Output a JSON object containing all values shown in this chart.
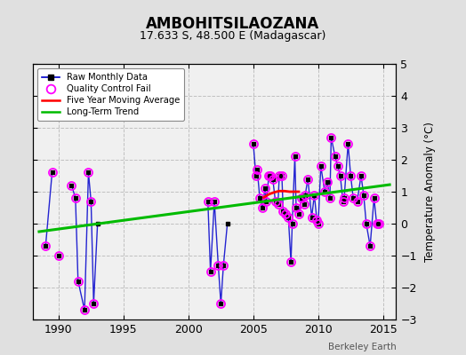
{
  "title": "AMBOHITSILAOZANA",
  "subtitle": "17.633 S, 48.500 E (Madagascar)",
  "ylabel": "Temperature Anomaly (°C)",
  "credit": "Berkeley Earth",
  "xlim": [
    1988,
    2016
  ],
  "ylim": [
    -3,
    5
  ],
  "yticks": [
    -3,
    -2,
    -1,
    0,
    1,
    2,
    3,
    4,
    5
  ],
  "xticks": [
    1990,
    1995,
    2000,
    2005,
    2010,
    2015
  ],
  "bg_color": "#e0e0e0",
  "plot_bg_color": "#f0f0f0",
  "raw_color": "#0000cc",
  "qc_color": "#ff00ff",
  "trend_color": "#00bb00",
  "mavg_color": "#ff0000",
  "grid_color": "#c0c0c0",
  "raw_segments": [
    [
      [
        1989.0,
        -0.7
      ],
      [
        1989.5,
        1.6
      ]
    ],
    [
      [
        1991.0,
        1.2
      ],
      [
        1991.3,
        0.8
      ],
      [
        1991.5,
        -1.8
      ],
      [
        1992.0,
        -2.7
      ],
      [
        1992.3,
        1.6
      ],
      [
        1992.5,
        0.7
      ],
      [
        1992.7,
        -2.5
      ],
      [
        1993.0,
        0.0
      ]
    ],
    [
      [
        2001.5,
        0.7
      ],
      [
        2001.7,
        -1.5
      ],
      [
        2002.0,
        0.7
      ],
      [
        2002.3,
        -1.3
      ],
      [
        2002.5,
        -2.5
      ],
      [
        2002.7,
        -1.3
      ],
      [
        2003.0,
        0.0
      ]
    ],
    [
      [
        2005.0,
        2.5
      ],
      [
        2005.2,
        1.5
      ],
      [
        2005.3,
        1.7
      ],
      [
        2005.5,
        0.8
      ],
      [
        2005.7,
        0.5
      ],
      [
        2005.9,
        1.1
      ],
      [
        2006.0,
        0.7
      ],
      [
        2006.2,
        1.5
      ],
      [
        2006.3,
        1.5
      ],
      [
        2006.5,
        1.4
      ],
      [
        2006.7,
        0.7
      ],
      [
        2006.9,
        0.6
      ],
      [
        2007.0,
        1.5
      ],
      [
        2007.2,
        1.5
      ],
      [
        2007.3,
        0.4
      ],
      [
        2007.5,
        0.3
      ],
      [
        2007.7,
        0.2
      ],
      [
        2007.9,
        -1.2
      ],
      [
        2008.0,
        0.0
      ],
      [
        2008.2,
        2.1
      ],
      [
        2008.3,
        0.5
      ],
      [
        2008.5,
        0.3
      ],
      [
        2008.7,
        0.8
      ],
      [
        2008.9,
        0.6
      ],
      [
        2009.0,
        0.9
      ],
      [
        2009.2,
        1.4
      ],
      [
        2009.5,
        0.2
      ],
      [
        2009.7,
        0.9
      ],
      [
        2009.9,
        0.1
      ],
      [
        2010.0,
        0.0
      ],
      [
        2010.2,
        1.8
      ],
      [
        2010.5,
        1.0
      ],
      [
        2010.7,
        1.3
      ],
      [
        2010.9,
        0.8
      ],
      [
        2011.0,
        2.7
      ],
      [
        2011.3,
        2.1
      ],
      [
        2011.5,
        1.8
      ],
      [
        2011.7,
        1.5
      ],
      [
        2011.9,
        0.7
      ],
      [
        2012.0,
        0.8
      ],
      [
        2012.3,
        2.5
      ],
      [
        2012.5,
        1.5
      ],
      [
        2012.7,
        0.8
      ],
      [
        2013.0,
        0.7
      ],
      [
        2013.3,
        1.5
      ],
      [
        2013.5,
        0.9
      ],
      [
        2013.7,
        0.0
      ],
      [
        2014.0,
        -0.7
      ],
      [
        2014.3,
        0.8
      ],
      [
        2014.5,
        0.0
      ],
      [
        2014.7,
        0.0
      ]
    ]
  ],
  "all_raw_points": [
    [
      1989.0,
      -0.7
    ],
    [
      1989.5,
      1.6
    ],
    [
      1990.0,
      -1.0
    ],
    [
      1991.0,
      1.2
    ],
    [
      1991.3,
      0.8
    ],
    [
      1991.5,
      -1.8
    ],
    [
      1992.0,
      -2.7
    ],
    [
      1992.3,
      1.6
    ],
    [
      1992.5,
      0.7
    ],
    [
      1992.7,
      -2.5
    ],
    [
      1993.0,
      0.0
    ],
    [
      2001.5,
      0.7
    ],
    [
      2001.7,
      -1.5
    ],
    [
      2002.0,
      0.7
    ],
    [
      2002.3,
      -1.3
    ],
    [
      2002.5,
      -2.5
    ],
    [
      2002.7,
      -1.3
    ],
    [
      2003.0,
      0.0
    ],
    [
      2005.0,
      2.5
    ],
    [
      2005.2,
      1.5
    ],
    [
      2005.3,
      1.7
    ],
    [
      2005.5,
      0.8
    ],
    [
      2005.7,
      0.5
    ],
    [
      2005.9,
      1.1
    ],
    [
      2006.0,
      0.7
    ],
    [
      2006.2,
      1.5
    ],
    [
      2006.3,
      1.5
    ],
    [
      2006.5,
      1.4
    ],
    [
      2006.7,
      0.7
    ],
    [
      2006.9,
      0.6
    ],
    [
      2007.0,
      1.5
    ],
    [
      2007.2,
      1.5
    ],
    [
      2007.3,
      0.4
    ],
    [
      2007.5,
      0.3
    ],
    [
      2007.7,
      0.2
    ],
    [
      2007.9,
      -1.2
    ],
    [
      2008.0,
      0.0
    ],
    [
      2008.2,
      2.1
    ],
    [
      2008.3,
      0.5
    ],
    [
      2008.5,
      0.3
    ],
    [
      2008.7,
      0.8
    ],
    [
      2008.9,
      0.6
    ],
    [
      2009.0,
      0.9
    ],
    [
      2009.2,
      1.4
    ],
    [
      2009.5,
      0.2
    ],
    [
      2009.7,
      0.9
    ],
    [
      2009.9,
      0.1
    ],
    [
      2010.0,
      0.0
    ],
    [
      2010.2,
      1.8
    ],
    [
      2010.5,
      1.0
    ],
    [
      2010.7,
      1.3
    ],
    [
      2010.9,
      0.8
    ],
    [
      2011.0,
      2.7
    ],
    [
      2011.3,
      2.1
    ],
    [
      2011.5,
      1.8
    ],
    [
      2011.7,
      1.5
    ],
    [
      2011.9,
      0.7
    ],
    [
      2012.0,
      0.8
    ],
    [
      2012.3,
      2.5
    ],
    [
      2012.5,
      1.5
    ],
    [
      2012.7,
      0.8
    ],
    [
      2013.0,
      0.7
    ],
    [
      2013.3,
      1.5
    ],
    [
      2013.5,
      0.9
    ],
    [
      2013.7,
      0.0
    ],
    [
      2014.0,
      -0.7
    ],
    [
      2014.3,
      0.8
    ],
    [
      2014.5,
      0.0
    ],
    [
      2014.7,
      0.0
    ]
  ],
  "qc_fail_points": [
    [
      1989.0,
      -0.7
    ],
    [
      1989.5,
      1.6
    ],
    [
      1990.0,
      -1.0
    ],
    [
      1991.0,
      1.2
    ],
    [
      1991.3,
      0.8
    ],
    [
      1991.5,
      -1.8
    ],
    [
      1992.0,
      -2.7
    ],
    [
      1992.3,
      1.6
    ],
    [
      1992.5,
      0.7
    ],
    [
      1992.7,
      -2.5
    ],
    [
      2001.5,
      0.7
    ],
    [
      2001.7,
      -1.5
    ],
    [
      2002.0,
      0.7
    ],
    [
      2002.3,
      -1.3
    ],
    [
      2002.5,
      -2.5
    ],
    [
      2002.7,
      -1.3
    ],
    [
      2005.0,
      2.5
    ],
    [
      2005.2,
      1.5
    ],
    [
      2005.3,
      1.7
    ],
    [
      2005.5,
      0.8
    ],
    [
      2005.7,
      0.5
    ],
    [
      2005.9,
      1.1
    ],
    [
      2006.0,
      0.7
    ],
    [
      2006.2,
      1.5
    ],
    [
      2006.3,
      1.5
    ],
    [
      2006.5,
      1.4
    ],
    [
      2006.7,
      0.7
    ],
    [
      2006.9,
      0.6
    ],
    [
      2007.0,
      1.5
    ],
    [
      2007.2,
      1.5
    ],
    [
      2007.3,
      0.4
    ],
    [
      2007.5,
      0.3
    ],
    [
      2007.7,
      0.2
    ],
    [
      2007.9,
      -1.2
    ],
    [
      2008.0,
      0.0
    ],
    [
      2008.2,
      2.1
    ],
    [
      2008.3,
      0.5
    ],
    [
      2008.5,
      0.3
    ],
    [
      2008.7,
      0.8
    ],
    [
      2008.9,
      0.6
    ],
    [
      2009.0,
      0.9
    ],
    [
      2009.2,
      1.4
    ],
    [
      2009.5,
      0.2
    ],
    [
      2009.7,
      0.9
    ],
    [
      2009.9,
      0.1
    ],
    [
      2010.0,
      0.0
    ],
    [
      2010.2,
      1.8
    ],
    [
      2010.5,
      1.0
    ],
    [
      2010.7,
      1.3
    ],
    [
      2010.9,
      0.8
    ],
    [
      2011.0,
      2.7
    ],
    [
      2011.3,
      2.1
    ],
    [
      2011.5,
      1.8
    ],
    [
      2011.7,
      1.5
    ],
    [
      2011.9,
      0.7
    ],
    [
      2012.0,
      0.8
    ],
    [
      2012.3,
      2.5
    ],
    [
      2012.5,
      1.5
    ],
    [
      2012.7,
      0.8
    ],
    [
      2013.0,
      0.7
    ],
    [
      2013.3,
      1.5
    ],
    [
      2013.5,
      0.9
    ],
    [
      2013.7,
      0.0
    ],
    [
      2014.0,
      -0.7
    ],
    [
      2014.3,
      0.8
    ],
    [
      2014.5,
      0.0
    ],
    [
      2014.7,
      0.0
    ]
  ],
  "trend_x": [
    1988.5,
    2015.5
  ],
  "trend_y": [
    -0.25,
    1.22
  ],
  "moving_avg_x": [
    2005.8,
    2006.2,
    2006.6,
    2007.0,
    2007.4,
    2007.8,
    2008.2,
    2008.5
  ],
  "moving_avg_y": [
    0.82,
    0.92,
    0.98,
    1.02,
    1.02,
    1.0,
    1.0,
    1.0
  ]
}
